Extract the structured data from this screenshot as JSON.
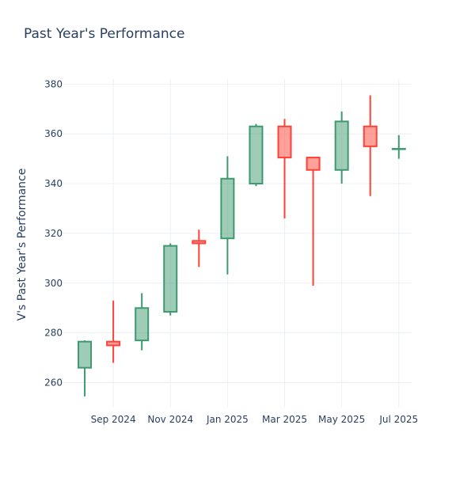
{
  "chart_data": {
    "type": "candlestick",
    "title": "Past Year's Performance",
    "xlabel": "",
    "ylabel": "V's Past Year's Performance",
    "ylim": [
      250,
      382
    ],
    "yticks": [
      260,
      280,
      300,
      320,
      340,
      360,
      380
    ],
    "xticks": [
      {
        "label": "Sep 2024",
        "month": 1
      },
      {
        "label": "Nov 2024",
        "month": 3
      },
      {
        "label": "Jan 2025",
        "month": 5
      },
      {
        "label": "Mar 2025",
        "month": 7
      },
      {
        "label": "May 2025",
        "month": 9
      },
      {
        "label": "Jul 2025",
        "month": 11
      }
    ],
    "xlim": [
      -0.75,
      11.45
    ],
    "grid": true,
    "colors": {
      "increasing": "#3d9970",
      "decreasing": "#ff4136"
    },
    "candles": [
      {
        "month": 0,
        "open": 266,
        "high": 277,
        "low": 254.5,
        "close": 276.5
      },
      {
        "month": 1,
        "open": 276.5,
        "high": 293,
        "low": 268,
        "close": 275
      },
      {
        "month": 2,
        "open": 277,
        "high": 296,
        "low": 273,
        "close": 290
      },
      {
        "month": 3,
        "open": 288.5,
        "high": 316,
        "low": 287,
        "close": 315
      },
      {
        "month": 4,
        "open": 317,
        "high": 321.5,
        "low": 306.5,
        "close": 316
      },
      {
        "month": 5,
        "open": 318,
        "high": 351,
        "low": 303.5,
        "close": 342
      },
      {
        "month": 6,
        "open": 340,
        "high": 364,
        "low": 339,
        "close": 363
      },
      {
        "month": 7,
        "open": 363,
        "high": 366,
        "low": 326,
        "close": 350.5
      },
      {
        "month": 8,
        "open": 350.5,
        "high": 350.5,
        "low": 299,
        "close": 345.5
      },
      {
        "month": 9,
        "open": 345.5,
        "high": 369,
        "low": 340,
        "close": 365
      },
      {
        "month": 10,
        "open": 363,
        "high": 375.5,
        "low": 335,
        "close": 355
      },
      {
        "month": 11,
        "open": 354,
        "high": 359.5,
        "low": 350,
        "close": 354
      }
    ]
  }
}
